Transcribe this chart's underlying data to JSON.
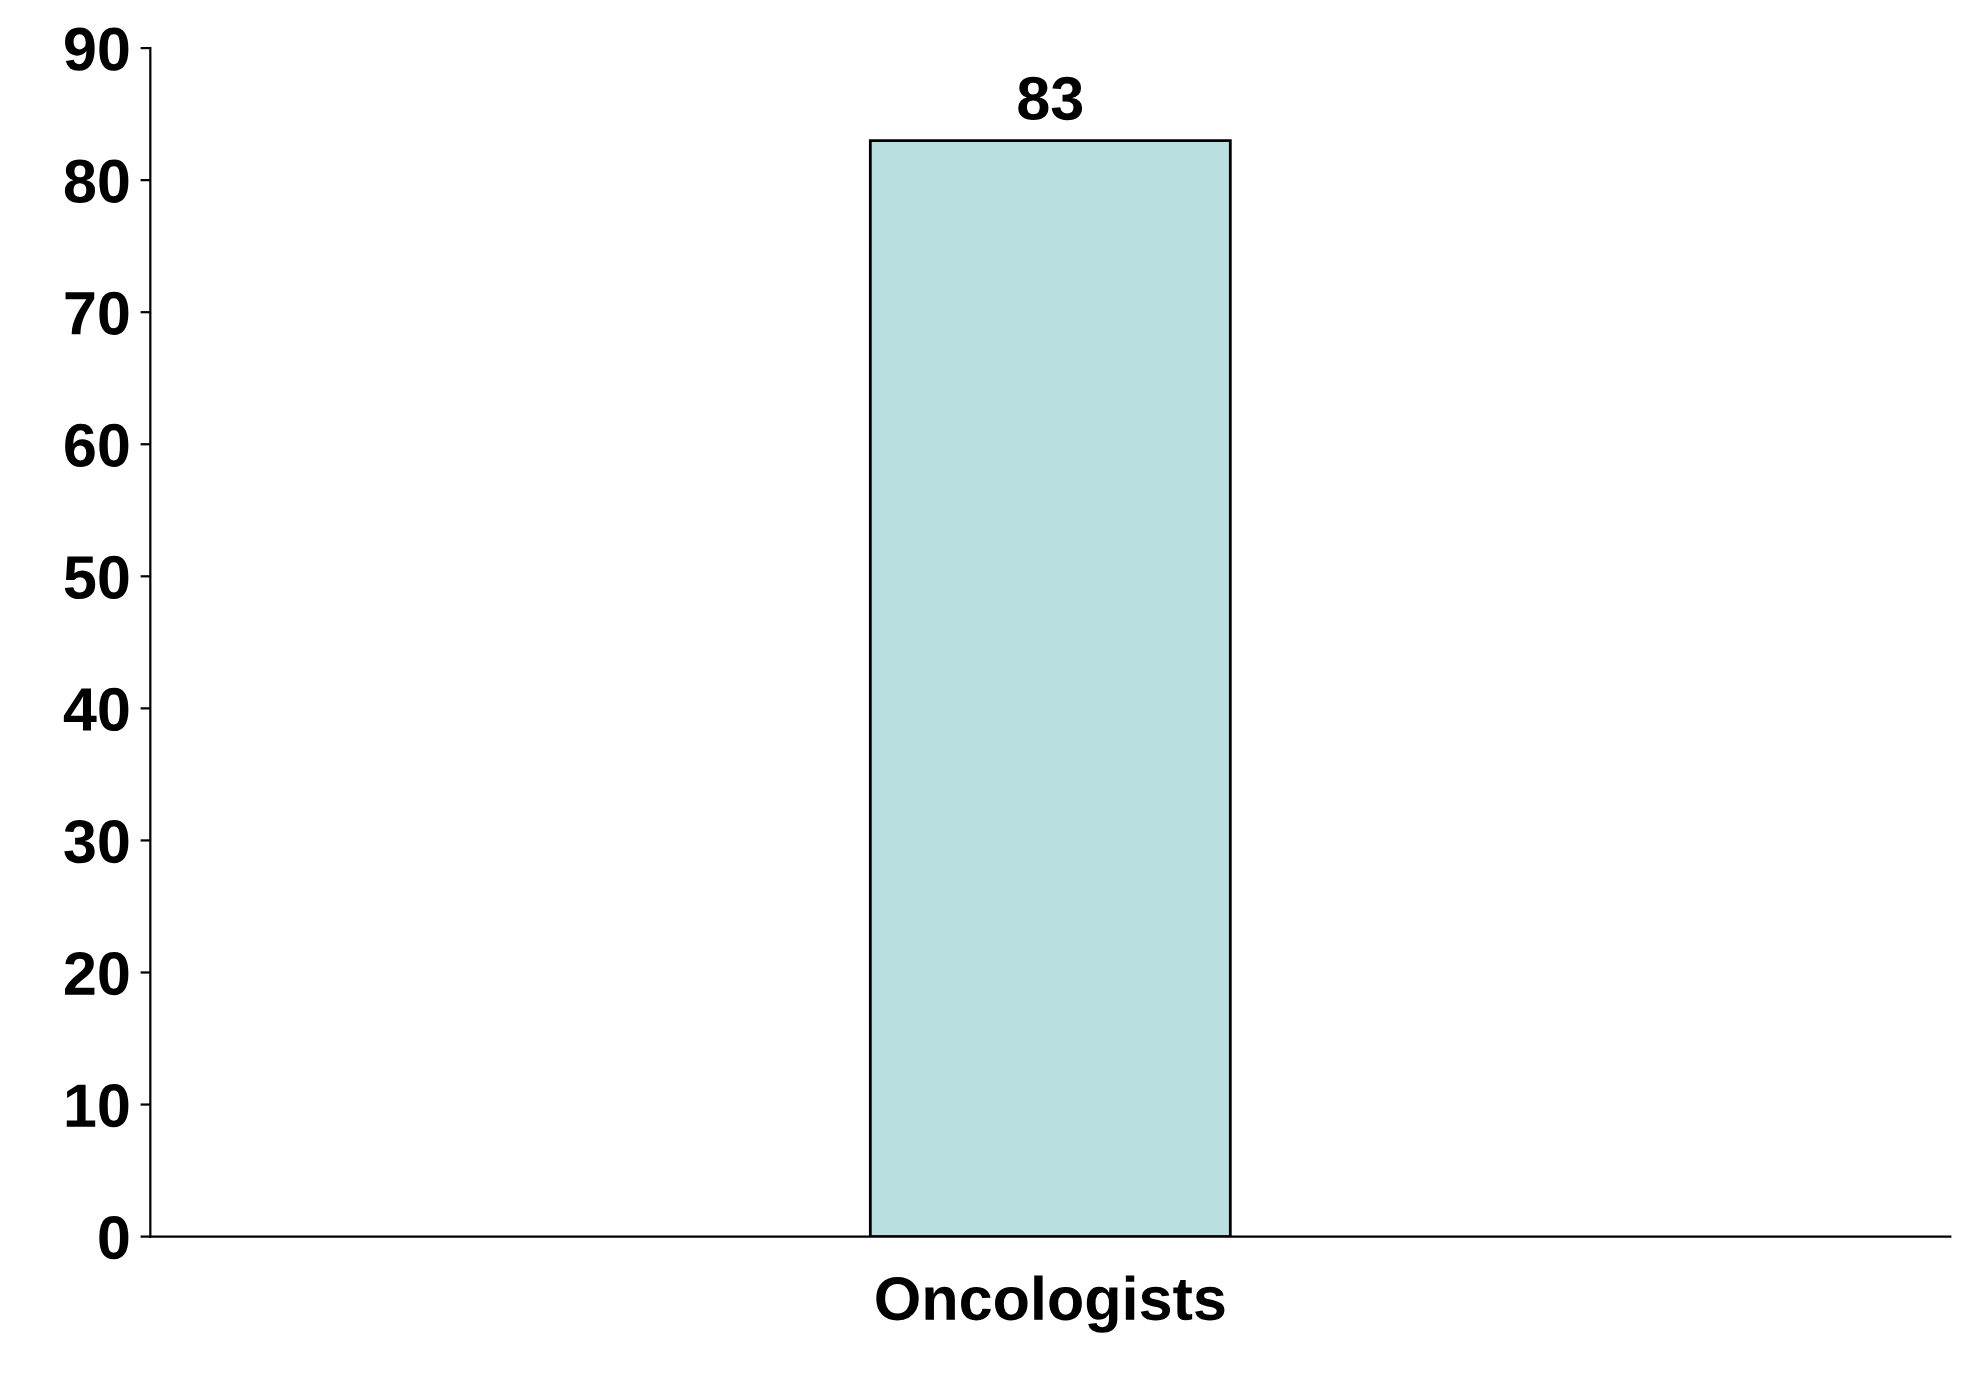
{
  "chart_data": {
    "type": "bar",
    "categories": [
      "Oncologists"
    ],
    "values": [
      83
    ],
    "color": "#b9dfe0",
    "ylim": [
      0,
      90
    ],
    "yticks": [
      0,
      10,
      20,
      30,
      40,
      50,
      60,
      70,
      80,
      90
    ],
    "grid": false,
    "data_labels": true
  }
}
